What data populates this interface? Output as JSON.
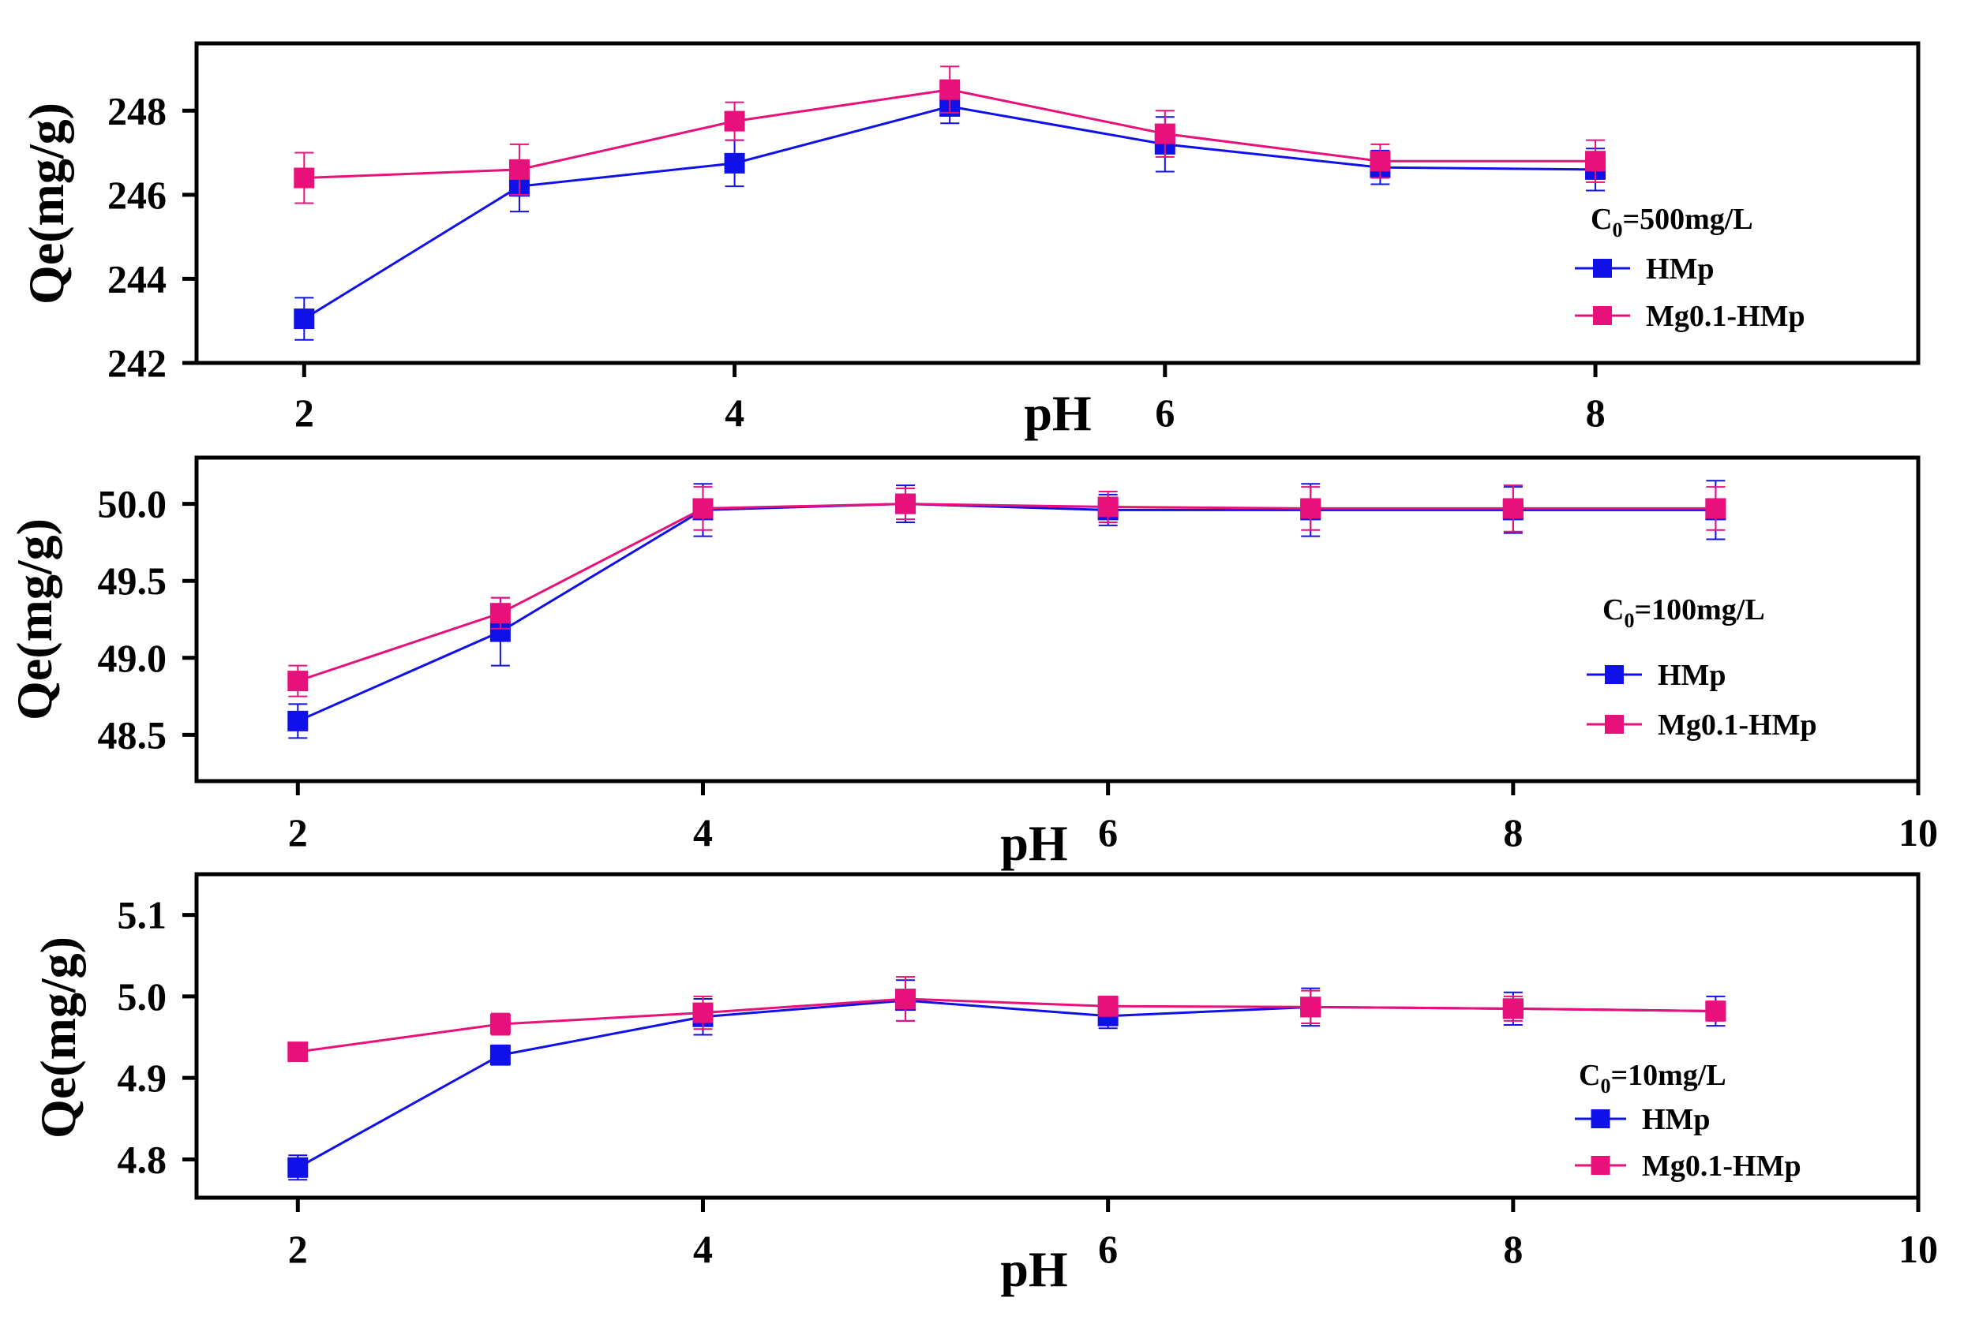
{
  "colors": {
    "series_hmp": "#1010e8",
    "series_mg": "#e8107a",
    "axis": "#000000"
  },
  "chart_data": [
    {
      "type": "line",
      "condition": "C0=500mg/L",
      "legend_title": {
        "main": "C",
        "sub": "0",
        "rest": "=500mg/L"
      },
      "xlabel": "pH",
      "ylabel": "Qe(mg/g)",
      "xlim": [
        1.5,
        9.5
      ],
      "ylim": [
        242,
        249.6
      ],
      "xticks": [
        2,
        4,
        6,
        8
      ],
      "xtick_labels": [
        "2",
        "4",
        "6",
        "8"
      ],
      "yticks": [
        242,
        244,
        246,
        248
      ],
      "ytick_labels": [
        "242",
        "244",
        "246",
        "248"
      ],
      "x": [
        2,
        3,
        4,
        5,
        6,
        7,
        8
      ],
      "series": [
        {
          "name": "HMp",
          "values": [
            243.05,
            246.2,
            246.75,
            248.1,
            247.2,
            246.65,
            246.6
          ],
          "errors": [
            0.5,
            0.6,
            0.55,
            0.4,
            0.65,
            0.4,
            0.5
          ]
        },
        {
          "name": "Mg0.1-HMp",
          "values": [
            246.4,
            246.6,
            247.75,
            248.5,
            247.45,
            246.8,
            246.8
          ],
          "errors": [
            0.6,
            0.6,
            0.45,
            0.55,
            0.55,
            0.4,
            0.5
          ]
        }
      ]
    },
    {
      "type": "line",
      "condition": "C0=100mg/L",
      "legend_title": {
        "main": "C",
        "sub": "0",
        "rest": "=100mg/L"
      },
      "xlabel": "pH",
      "ylabel": "Qe(mg/g)",
      "xlim": [
        1.5,
        10
      ],
      "ylim": [
        48.2,
        50.3
      ],
      "xticks": [
        2,
        4,
        6,
        8,
        10
      ],
      "xtick_labels": [
        "2",
        "4",
        "6",
        "8",
        "10"
      ],
      "yticks": [
        48.5,
        49.0,
        49.5,
        50.0
      ],
      "ytick_labels": [
        "48.5",
        "49.0",
        "49.5",
        "50.0"
      ],
      "x": [
        2,
        3,
        4,
        5,
        6,
        7,
        8,
        9
      ],
      "series": [
        {
          "name": "HMp",
          "values": [
            48.59,
            49.17,
            49.96,
            50.0,
            49.96,
            49.96,
            49.96,
            49.96
          ],
          "errors": [
            0.11,
            0.22,
            0.17,
            0.12,
            0.1,
            0.17,
            0.15,
            0.19
          ]
        },
        {
          "name": "Mg0.1-HMp",
          "values": [
            48.85,
            49.29,
            49.97,
            50.0,
            49.98,
            49.97,
            49.97,
            49.97
          ],
          "errors": [
            0.1,
            0.1,
            0.14,
            0.1,
            0.1,
            0.14,
            0.15,
            0.14
          ]
        }
      ]
    },
    {
      "type": "line",
      "condition": "C0=10mg/L",
      "legend_title": {
        "main": "C",
        "sub": "0",
        "rest": "=10mg/L"
      },
      "xlabel": "pH",
      "ylabel": "Qe(mg/g)",
      "xlim": [
        1.5,
        10
      ],
      "ylim": [
        4.753,
        5.15
      ],
      "xticks": [
        2,
        4,
        6,
        8,
        10
      ],
      "xtick_labels": [
        "2",
        "4",
        "6",
        "8",
        "10"
      ],
      "yticks": [
        4.8,
        4.9,
        5.0,
        5.1
      ],
      "ytick_labels": [
        "4.8",
        "4.9",
        "5.0",
        "5.1"
      ],
      "x": [
        2,
        3,
        4,
        5,
        6,
        7,
        8,
        9
      ],
      "series": [
        {
          "name": "HMp",
          "values": [
            4.79,
            4.928,
            4.975,
            4.995,
            4.976,
            4.987,
            4.985,
            4.982
          ],
          "errors": [
            0.015,
            0.012,
            0.022,
            0.025,
            0.015,
            0.023,
            0.02,
            0.018
          ]
        },
        {
          "name": "Mg0.1-HMp",
          "values": [
            4.932,
            4.966,
            4.98,
            4.997,
            4.988,
            4.987,
            4.985,
            4.982
          ],
          "errors": [
            0.01,
            0.013,
            0.02,
            0.027,
            0.012,
            0.02,
            0.015,
            0.012
          ]
        }
      ]
    }
  ]
}
